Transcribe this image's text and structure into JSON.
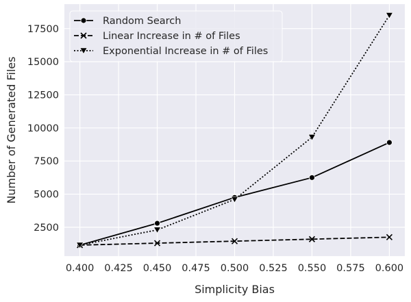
{
  "chart_data": {
    "type": "line",
    "xlabel": "Simplicity Bias",
    "ylabel": "Number of Generated Files",
    "x": [
      0.4,
      0.45,
      0.5,
      0.55,
      0.6
    ],
    "xlim": [
      0.39,
      0.61
    ],
    "ylim": [
      320,
      19350
    ],
    "xticks": [
      "0.400",
      "0.425",
      "0.450",
      "0.475",
      "0.500",
      "0.525",
      "0.550",
      "0.575",
      "0.600"
    ],
    "xtick_values": [
      0.4,
      0.425,
      0.45,
      0.475,
      0.5,
      0.525,
      0.55,
      0.575,
      0.6
    ],
    "yticks": [
      "2500",
      "5000",
      "7500",
      "10000",
      "12500",
      "15000",
      "17500"
    ],
    "ytick_values": [
      2500,
      5000,
      7500,
      10000,
      12500,
      15000,
      17500
    ],
    "grid": true,
    "legend_position": "upper-left",
    "background": "#eaeaf2",
    "series": [
      {
        "name": "Random Search",
        "values": [
          1150,
          2800,
          4750,
          6250,
          8900
        ],
        "color": "#000000",
        "dash": "solid",
        "marker": "circle"
      },
      {
        "name": "Linear Increase in # of Files",
        "values": [
          1150,
          1300,
          1450,
          1600,
          1750
        ],
        "color": "#000000",
        "dash": "dashed",
        "marker": "x"
      },
      {
        "name": "Exponential Increase in # of Files",
        "values": [
          1150,
          2300,
          4600,
          9300,
          18500
        ],
        "color": "#000000",
        "dash": "dotted",
        "marker": "triangle-down"
      }
    ]
  }
}
